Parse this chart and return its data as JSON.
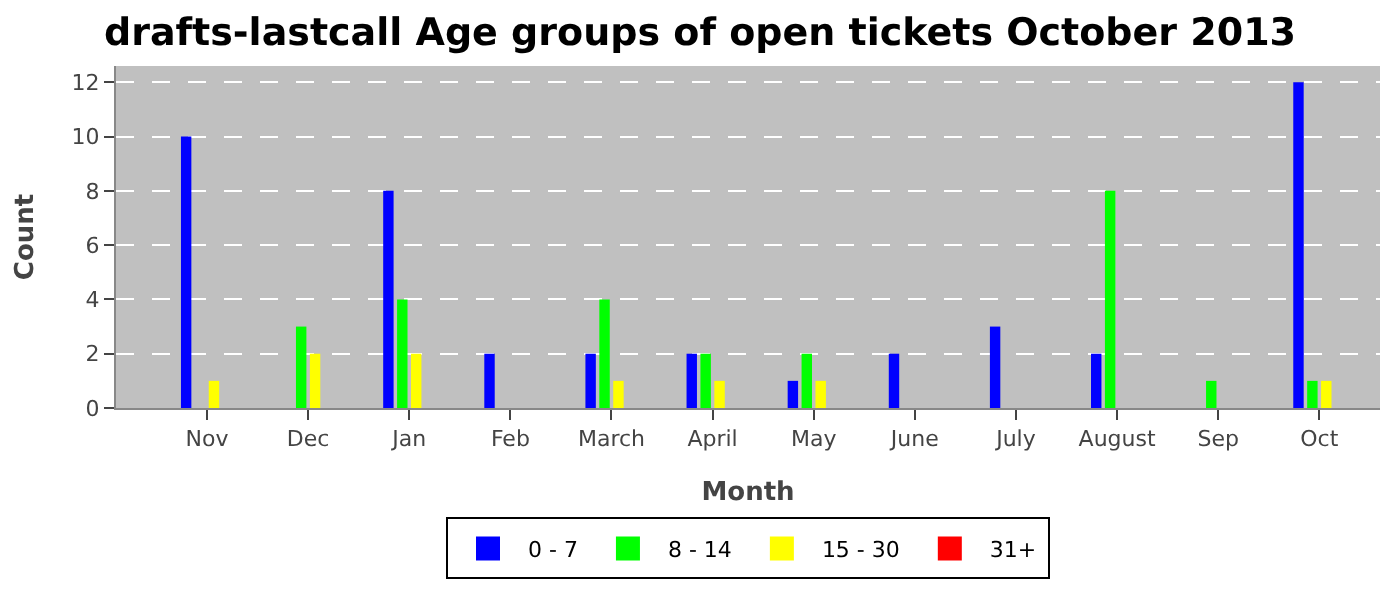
{
  "chart_data": {
    "type": "bar",
    "title": "drafts-lastcall Age groups of open tickets October 2013",
    "xlabel": "Month",
    "ylabel": "Count",
    "categories": [
      "Nov",
      "Dec",
      "Jan",
      "Feb",
      "March",
      "April",
      "May",
      "June",
      "July",
      "August",
      "Sep",
      "Oct"
    ],
    "series": [
      {
        "name": "0 - 7",
        "color": "#0000ff",
        "values": [
          10,
          0,
          8,
          2,
          2,
          2,
          1,
          2,
          3,
          2,
          0,
          12
        ]
      },
      {
        "name": "8 - 14",
        "color": "#00ff00",
        "values": [
          0,
          3,
          4,
          0,
          4,
          2,
          2,
          0,
          0,
          8,
          1,
          1
        ]
      },
      {
        "name": "15 - 30",
        "color": "#ffff00",
        "values": [
          1,
          2,
          2,
          0,
          1,
          1,
          1,
          0,
          0,
          0,
          0,
          1
        ]
      },
      {
        "name": "31+",
        "color": "#ff0000",
        "values": [
          0,
          0,
          0,
          0,
          0,
          0,
          0,
          0,
          0,
          0,
          0,
          0
        ]
      }
    ],
    "ylim": [
      0,
      12.6
    ],
    "yticks": [
      0,
      2,
      4,
      6,
      8,
      10,
      12
    ],
    "grid": "y",
    "legend": "bottom"
  }
}
